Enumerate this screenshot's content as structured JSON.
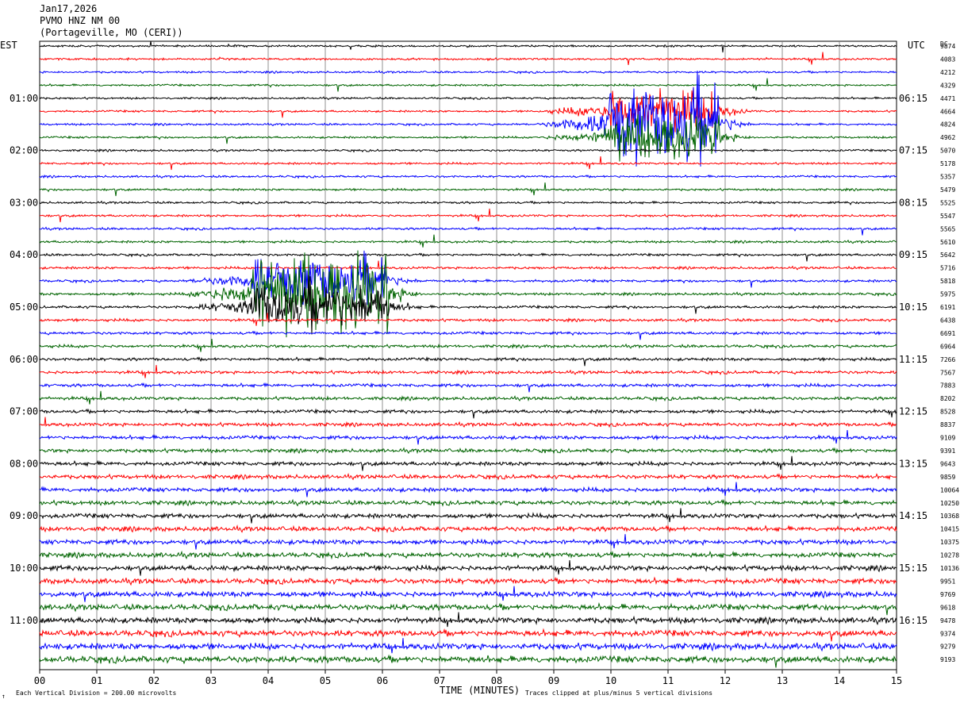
{
  "chart_data": {
    "type": "line",
    "title_lines": [
      "Jan17,2026",
      "PVMO HNZ NM 00",
      "(Portageville, MO (CERI))"
    ],
    "left_zone_label": "EST",
    "right_zone_label": "UTC",
    "dc_label": "DC",
    "xlabel": "TIME (MINUTES)",
    "xlim": [
      0,
      15
    ],
    "x_ticks": [
      "00",
      "01",
      "02",
      "03",
      "04",
      "05",
      "06",
      "07",
      "08",
      "09",
      "10",
      "11",
      "12",
      "13",
      "14",
      "15"
    ],
    "left_hour_labels": [
      "01:00",
      "02:00",
      "03:00",
      "04:00",
      "05:00",
      "06:00",
      "07:00",
      "08:00",
      "09:00",
      "10:00",
      "11:00"
    ],
    "right_hour_labels": [
      "06:15",
      "07:15",
      "08:15",
      "09:15",
      "10:15",
      "11:15",
      "12:15",
      "13:15",
      "14:15",
      "15:15",
      "16:15"
    ],
    "trace_colors": [
      "#000000",
      "#ff0000",
      "#0000ff",
      "#006400"
    ],
    "dc_offsets": [
      9874,
      4083,
      4212,
      4329,
      4471,
      4664,
      4824,
      4962,
      5070,
      5178,
      5357,
      5479,
      5525,
      5547,
      5565,
      5610,
      5642,
      5716,
      5818,
      5975,
      6191,
      6438,
      6691,
      6964,
      7266,
      7567,
      7883,
      8202,
      8528,
      8837,
      9109,
      9391,
      9643,
      9859,
      10064,
      10250,
      10368,
      10415,
      10375,
      10278,
      10136,
      9951,
      9769,
      9618,
      9478,
      9374,
      9279,
      9193
    ],
    "events": [
      {
        "start_min": 9.9,
        "end_min": 11.9,
        "trace": 6
      },
      {
        "start_min": 3.7,
        "end_min": 6.1,
        "trace": 19
      }
    ],
    "footer_left": "Each Vertical Division =  200.00 microvolts",
    "footer_right": "Traces clipped at plus/minus 5 vertical divisions",
    "corner_mark": "↑"
  }
}
